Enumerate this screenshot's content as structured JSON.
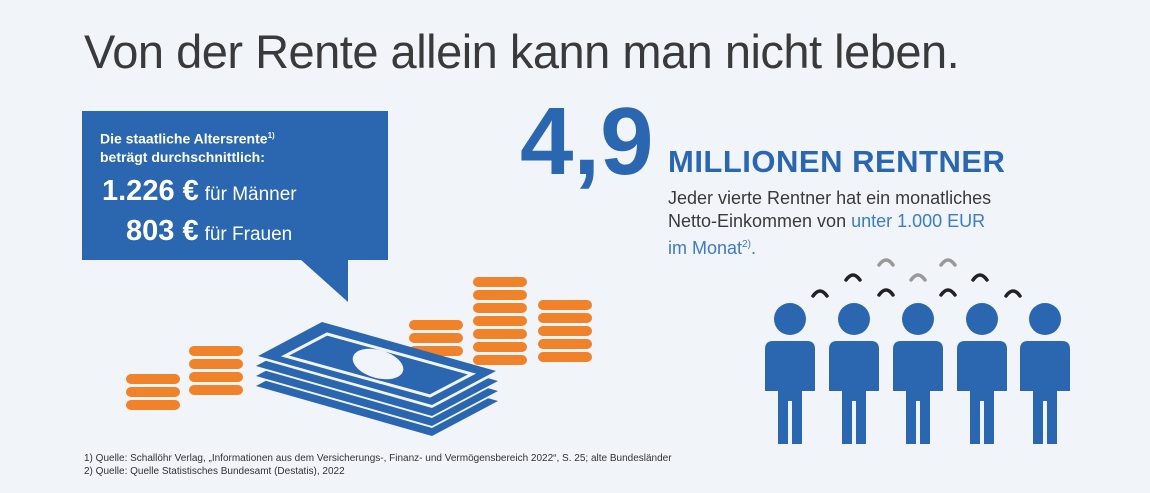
{
  "title": "Von der Rente allein kann man nicht leben.",
  "bubble": {
    "intro_line1": "Die staatliche Altersrente",
    "intro_sup": "1)",
    "intro_line2": "beträgt durchschnittlich:",
    "rows": [
      {
        "amount": "1.226 €",
        "label": "für Männer"
      },
      {
        "amount": "803 €",
        "label": "für Frauen"
      }
    ]
  },
  "stat": {
    "number": "4,9",
    "headline": "MILLIONEN RENTNER",
    "desc_line1": "Jeder vierte Rentner hat ein monatliches",
    "desc_line2_plain": "Netto-Einkommen von ",
    "desc_line2_highlight": "unter 1.000 EUR",
    "desc_line3_highlight": "im Monat",
    "desc_sup": "2)",
    "desc_end": "."
  },
  "footnotes": [
    "1) Quelle: Schallöhr Verlag, „Informationen aus dem Versicherungs-, Finanz- und Vermögensbereich 2022“, S. 25; alte Bundesländer",
    "2) Quelle: Quelle Statistisches Bundesamt (Destatis), 2022"
  ],
  "colors": {
    "background": "#f1f4f9",
    "brand_blue": "#2b66b0",
    "coin_orange": "#f0822a",
    "highlight_blue": "#3b7cc4",
    "text_dark": "#3a3a3a"
  },
  "icons": [
    "coin-stack-icon",
    "banknote-stack-icon",
    "person-icon",
    "speech-bubble-icon"
  ]
}
